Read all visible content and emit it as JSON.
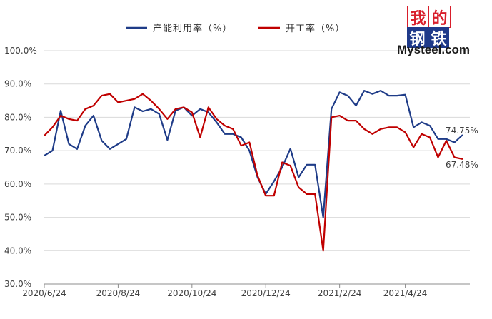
{
  "logo": {
    "c1": "我",
    "c2": "的",
    "c3": "钢",
    "c4": "铁",
    "brand": "Mysteel.com"
  },
  "colors": {
    "series1": "#1f3c88",
    "series2": "#c00000"
  },
  "chart_data": {
    "type": "line",
    "ylim": [
      30,
      100
    ],
    "y_ticks": [
      "30.0%",
      "40.0%",
      "50.0%",
      "60.0%",
      "70.0%",
      "80.0%",
      "90.0%",
      "100.0%"
    ],
    "x_ticks": [
      "2020/6/24",
      "2020/8/24",
      "2020/10/24",
      "2020/12/24",
      "2021/2/24",
      "2021/4/24"
    ],
    "x_tick_index": [
      0,
      9,
      18,
      27,
      36,
      44
    ],
    "legend_position": "top-center",
    "series": [
      {
        "name": "产能利用率（%）",
        "end_label": "74.75%",
        "values": [
          68.5,
          70.0,
          82.0,
          72.0,
          70.5,
          77.5,
          80.5,
          73.0,
          70.5,
          72.0,
          73.5,
          83.0,
          81.8,
          82.5,
          81.0,
          73.2,
          82.0,
          83.0,
          80.5,
          82.5,
          81.5,
          78.5,
          75.0,
          75.0,
          74.0,
          70.0,
          62.0,
          57.0,
          60.8,
          65.0,
          70.6,
          62.0,
          65.8,
          65.8,
          50.0,
          82.5,
          87.5,
          86.5,
          83.5,
          88.0,
          87.0,
          88.0,
          86.5,
          86.5,
          86.8,
          77.0,
          78.5,
          77.5,
          73.5,
          73.5,
          72.5,
          74.75
        ]
      },
      {
        "name": "开工率（%）",
        "end_label": "67.48%",
        "values": [
          74.5,
          77.0,
          80.5,
          79.5,
          79.0,
          82.5,
          83.5,
          86.5,
          87.0,
          84.5,
          85.0,
          85.5,
          87.0,
          85.0,
          82.5,
          79.5,
          82.5,
          83.0,
          81.5,
          74.0,
          83.0,
          79.5,
          77.5,
          76.5,
          71.5,
          72.5,
          62.5,
          56.5,
          56.5,
          66.5,
          65.5,
          59.0,
          57.0,
          57.0,
          40.0,
          80.0,
          80.5,
          79.0,
          79.0,
          76.5,
          75.0,
          76.5,
          77.0,
          77.0,
          75.5,
          71.0,
          75.0,
          74.0,
          68.0,
          73.0,
          68.0,
          67.48
        ]
      }
    ]
  }
}
